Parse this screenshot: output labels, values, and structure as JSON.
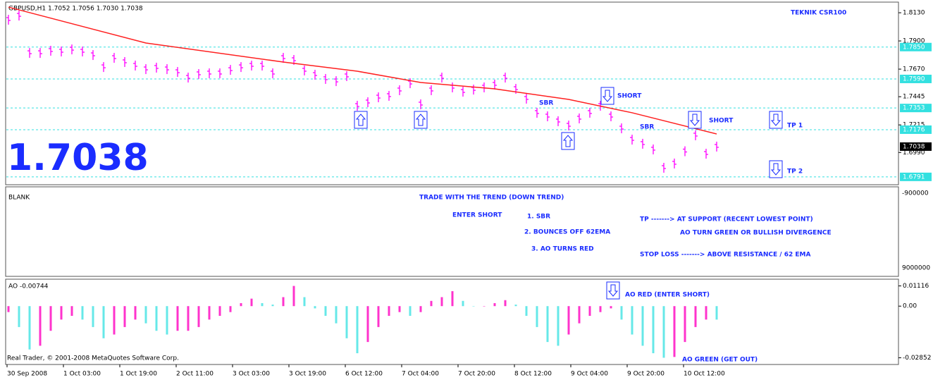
{
  "chart_data": [
    {
      "type": "price",
      "title": "GBPUSD,H1  1.7052 1.7056 1.7030 1.7038",
      "subtitle": "TEKNIK CSR100",
      "last": {
        "value": 1.7038,
        "label": "1.7038"
      },
      "color": "#ff00ff",
      "values": [
        1.8073,
        1.8107,
        1.7802,
        1.7802,
        1.782,
        1.7814,
        1.7831,
        1.7814,
        1.7785,
        1.7687,
        1.7762,
        1.7728,
        1.7699,
        1.767,
        1.7682,
        1.767,
        1.7647,
        1.7601,
        1.763,
        1.7636,
        1.7636,
        1.7664,
        1.7687,
        1.7699,
        1.7699,
        1.7636,
        1.7762,
        1.7745,
        1.7659,
        1.7624,
        1.759,
        1.7572,
        1.7613,
        1.7371,
        1.74,
        1.744,
        1.7452,
        1.7498,
        1.7555,
        1.7383,
        1.7498,
        1.7601,
        1.7521,
        1.7486,
        1.7503,
        1.7521,
        1.7544,
        1.7601,
        1.7509,
        1.7429,
        1.7314,
        1.7285,
        1.7245,
        1.721,
        1.7268,
        1.7314,
        1.7371,
        1.7285,
        1.7187,
        1.7095,
        1.7061,
        1.7015,
        1.6865,
        1.69,
        1.7,
        1.713,
        1.698,
        1.7038
      ],
      "ema": {
        "color": "#ff2020",
        "index": [
          0,
          13,
          26,
          33,
          39,
          46,
          53,
          59,
          67
        ],
        "values": [
          1.8176,
          1.7883,
          1.7728,
          1.7653,
          1.7561,
          1.7509,
          1.7423,
          1.7314,
          1.7141
        ]
      },
      "ylim": [
        1.6727,
        1.8234
      ],
      "yticks": [
        {
          "value": 1.813,
          "label": "1.8130"
        },
        {
          "value": 1.79,
          "label": "1.7900"
        },
        {
          "value": 1.767,
          "label": "1.7670"
        },
        {
          "value": 1.7445,
          "label": "1.7445"
        },
        {
          "value": 1.7215,
          "label": "1.7215"
        },
        {
          "value": 1.699,
          "label": "1.6990"
        }
      ],
      "levels": [
        {
          "value": 1.785,
          "label": "1.7850"
        },
        {
          "value": 1.759,
          "label": "1.7590"
        },
        {
          "value": 1.7353,
          "label": "1.7353"
        },
        {
          "value": 1.7176,
          "label": "1.7176"
        },
        {
          "value": 1.6791,
          "label": "1.6791"
        }
      ],
      "level_color": "#33e0e0",
      "annotations": [
        "SHORT",
        "SHORT",
        "SBR",
        "SBR",
        "TP 1",
        "TP 2"
      ]
    },
    {
      "type": "bar",
      "title": "AO -0.00744",
      "rising_color": "#ff33cc",
      "falling_color": "#66e8e8",
      "values": [
        -0.0033,
        -0.01156,
        -0.02395,
        -0.02189,
        -0.01363,
        -0.00743,
        -0.00537,
        -0.00743,
        -0.01156,
        -0.01776,
        -0.01569,
        -0.01156,
        -0.00743,
        -0.0095,
        -0.01363,
        -0.01569,
        -0.01363,
        -0.01363,
        -0.01156,
        -0.00743,
        -0.00537,
        -0.0033,
        0.00165,
        0.00413,
        0.00165,
        0.00083,
        0.00496,
        0.01115,
        0.00496,
        -0.00124,
        -0.00537,
        -0.0095,
        -0.01776,
        -0.02602,
        -0.01982,
        -0.01156,
        -0.00537,
        -0.0033,
        -0.00537,
        -0.0033,
        0.00289,
        0.00496,
        0.00826,
        0.00289,
        0,
        0,
        0.00165,
        0.0033,
        0.00083,
        -0.00537,
        -0.01156,
        -0.01982,
        -0.02189,
        -0.01569,
        -0.0095,
        -0.00537,
        -0.0033,
        -0.00124,
        -0.00743,
        -0.01569,
        -0.02189,
        -0.02602,
        -0.02852,
        -0.02808,
        -0.01982,
        -0.01156,
        -0.00743,
        -0.00744
      ],
      "ylim": [
        -0.03224,
        0.01488
      ],
      "yticks": [
        0.01116,
        {
          "value": 0,
          "label": "0.00"
        },
        -0.02852
      ],
      "annotations": [
        "AO RED (ENTER SHORT)",
        "AO GREEN (GET OUT)"
      ]
    }
  ],
  "blank_pane": {
    "title": "BLANK",
    "axis": [
      "-900000",
      "9000000"
    ],
    "notes": [
      "TRADE WITH THE TREND (DOWN TREND)",
      "ENTER SHORT",
      "1. SBR",
      "2. BOUNCES OFF 62EMA",
      "3. AO TURNS RED",
      "TP -------> AT SUPPORT (RECENT LOWEST POINT)",
      "AO TURN GREEN OR BULLISH DIVERGENCE",
      "STOP LOSS -------> ABOVE RESISTANCE / 62 EMA"
    ]
  },
  "footer": "Real Trader, © 2001-2008 MetaQuotes Software Corp.",
  "time_labels": [
    "30 Sep 2008",
    "1 Oct 03:00",
    "1 Oct 19:00",
    "2 Oct 11:00",
    "3 Oct 03:00",
    "3 Oct 19:00",
    "6 Oct 12:00",
    "7 Oct 04:00",
    "7 Oct 20:00",
    "8 Oct 12:00",
    "9 Oct 04:00",
    "9 Oct 20:00",
    "10 Oct 12:00"
  ]
}
